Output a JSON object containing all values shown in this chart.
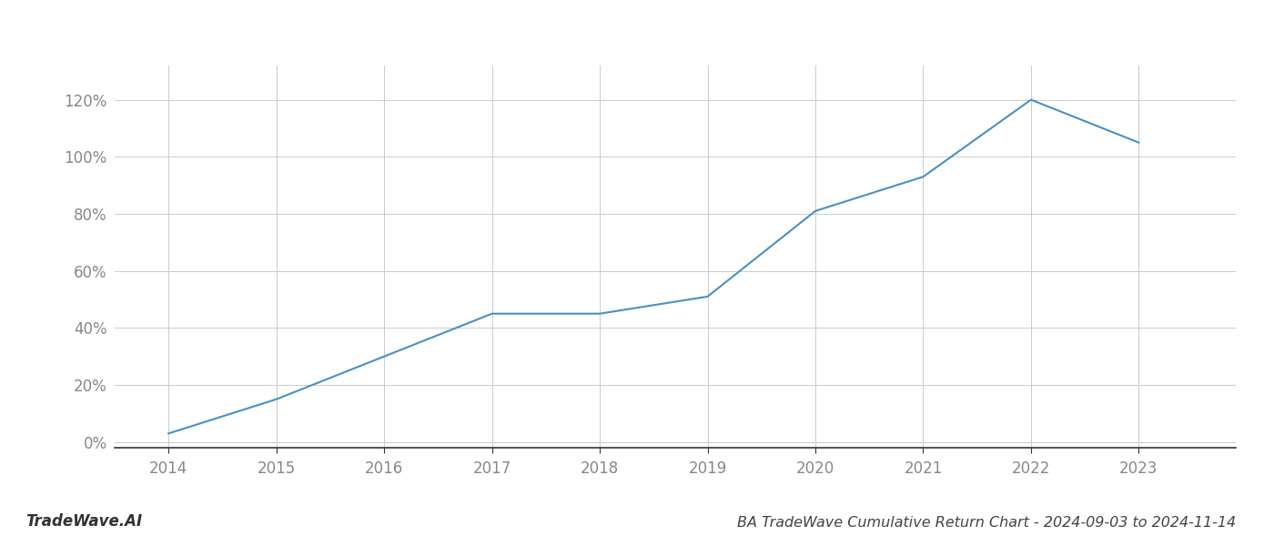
{
  "title": "BA TradeWave Cumulative Return Chart - 2024-09-03 to 2024-11-14",
  "watermark": "TradeWave.AI",
  "x_values": [
    2014,
    2015,
    2016,
    2017,
    2018,
    2019,
    2020,
    2021,
    2022,
    2023
  ],
  "y_values": [
    0.03,
    0.15,
    0.3,
    0.45,
    0.45,
    0.51,
    0.81,
    0.93,
    1.2,
    1.05
  ],
  "line_color": "#4a90c4",
  "background_color": "#ffffff",
  "grid_color": "#cccccc",
  "title_color": "#444444",
  "watermark_color": "#333333",
  "ylim_min": -0.02,
  "ylim_max": 1.32,
  "xlim_min": 2013.5,
  "xlim_max": 2023.9,
  "yticks": [
    0.0,
    0.2,
    0.4,
    0.6,
    0.8,
    1.0,
    1.2
  ],
  "ytick_labels": [
    "0%",
    "20%",
    "40%",
    "60%",
    "80%",
    "100%",
    "120%"
  ],
  "xticks": [
    2014,
    2015,
    2016,
    2017,
    2018,
    2019,
    2020,
    2021,
    2022,
    2023
  ],
  "line_width": 1.5,
  "title_fontsize": 11.5,
  "tick_fontsize": 12,
  "watermark_fontsize": 12
}
